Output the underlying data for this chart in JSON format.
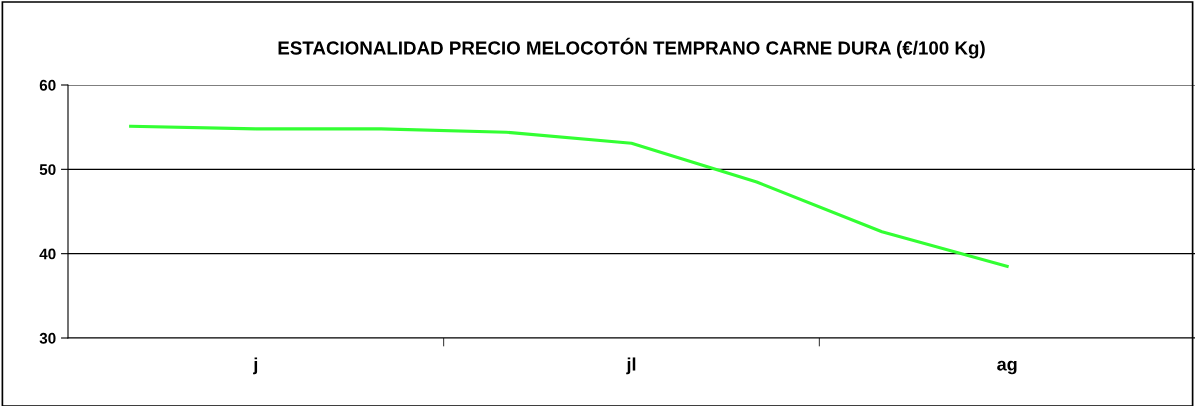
{
  "chart_data": {
    "type": "line",
    "title": "ESTACIONALIDAD PRECIO MELOCOTÓN TEMPRANO CARNE DURA (€/100 Kg)",
    "categories": [
      null,
      "j",
      null,
      null,
      "jl",
      null,
      null,
      "ag",
      null
    ],
    "series": [
      {
        "color": "#33ff33",
        "values": [
          55.1,
          54.8,
          54.8,
          54.4,
          53.1,
          48.5,
          42.6,
          38.5,
          null
        ]
      }
    ],
    "ylim": [
      30,
      60
    ],
    "yticks": [
      30,
      40,
      50,
      60
    ],
    "grid": "y",
    "marker": "none",
    "line_style": "solid"
  }
}
